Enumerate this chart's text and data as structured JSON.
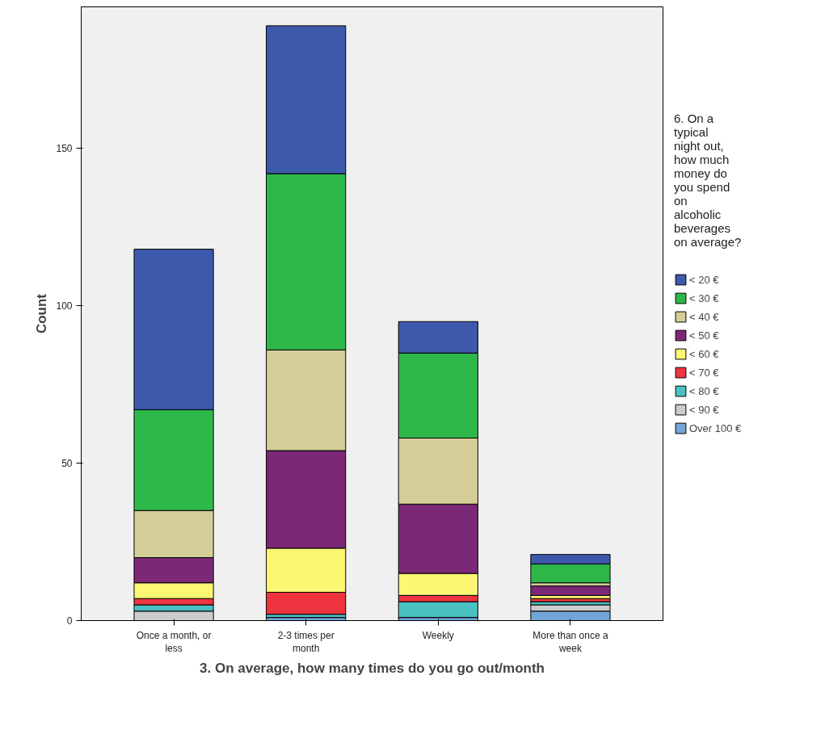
{
  "chart_data": {
    "type": "bar",
    "stacked": true,
    "xlabel": "3. On average, how many times do you go out/month",
    "ylabel": "Count",
    "legend_title": "6. On a typical night out, how much money do you spend on alcoholic beverages on average?",
    "categories": [
      "Once a month, or less",
      "2-3 times per month",
      "Weekly",
      "More than once a week"
    ],
    "series": [
      {
        "name": "Over 100 €",
        "color": "#72a5d8",
        "values": [
          0,
          1,
          1,
          3
        ]
      },
      {
        "name": "< 90 €",
        "color": "#cccccc",
        "values": [
          3,
          0,
          0,
          2
        ]
      },
      {
        "name": "< 80 €",
        "color": "#4ac0c1",
        "values": [
          2,
          1,
          5,
          1
        ]
      },
      {
        "name": "< 70 €",
        "color": "#ee343e",
        "values": [
          2,
          7,
          2,
          1
        ]
      },
      {
        "name": "< 60 €",
        "color": "#fbf773",
        "values": [
          5,
          14,
          7,
          1
        ]
      },
      {
        "name": "< 50 €",
        "color": "#7b2877",
        "values": [
          8,
          31,
          22,
          3
        ]
      },
      {
        "name": "< 40 €",
        "color": "#d4cd98",
        "values": [
          15,
          32,
          21,
          1
        ]
      },
      {
        "name": "< 30 €",
        "color": "#2fb84a",
        "values": [
          32,
          56,
          27,
          6
        ]
      },
      {
        "name": "< 20 €",
        "color": "#3d59ab",
        "values": [
          51,
          47,
          10,
          3
        ]
      }
    ],
    "ylim": [
      0,
      195
    ],
    "yticks": [
      0,
      50,
      100,
      150
    ],
    "grid": false,
    "legend": "right"
  }
}
